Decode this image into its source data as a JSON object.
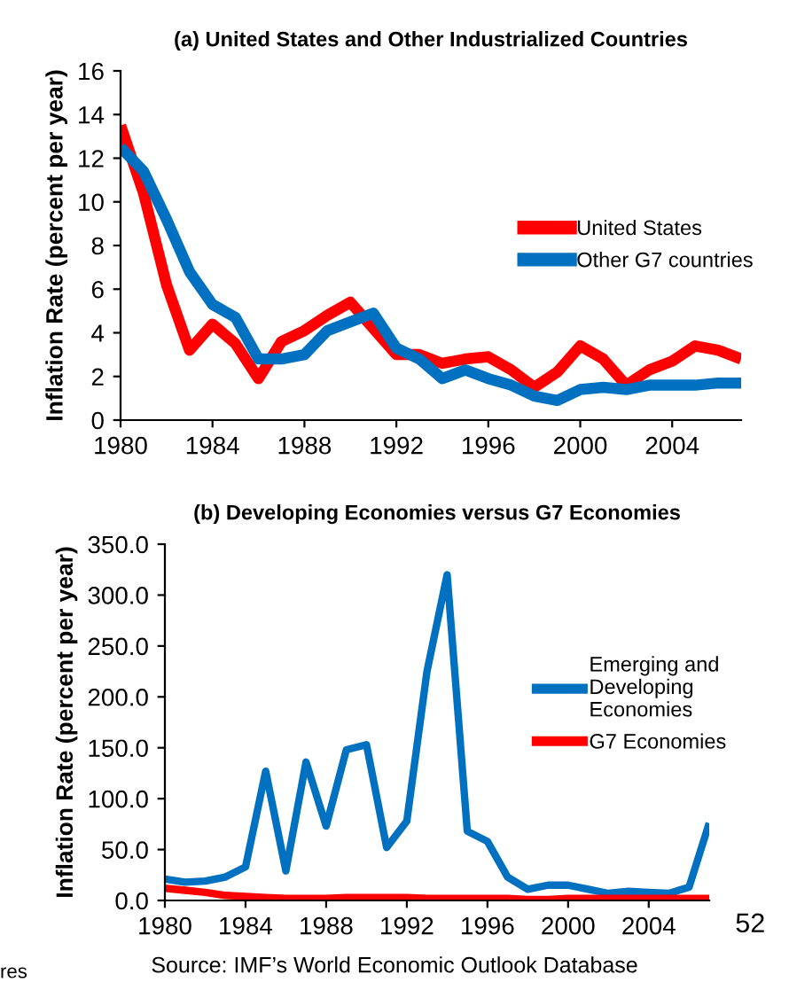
{
  "chart_data": [
    {
      "type": "line",
      "title": "(a) United States and Other Industrialized Countries",
      "ylabel": "Inflation Rate (percent per year)",
      "x": [
        1980,
        1981,
        1982,
        1983,
        1984,
        1985,
        1986,
        1987,
        1988,
        1989,
        1990,
        1991,
        1992,
        1993,
        1994,
        1995,
        1996,
        1997,
        1998,
        1999,
        2000,
        2001,
        2002,
        2003,
        2004,
        2005,
        2006,
        2007
      ],
      "series": [
        {
          "name": "United States",
          "color": "#ff0000",
          "values": [
            13.5,
            10.4,
            6.2,
            3.2,
            4.4,
            3.5,
            1.9,
            3.6,
            4.1,
            4.8,
            5.4,
            4.2,
            3.0,
            3.0,
            2.6,
            2.8,
            2.9,
            2.3,
            1.5,
            2.2,
            3.4,
            2.8,
            1.6,
            2.3,
            2.7,
            3.4,
            3.2,
            2.8
          ]
        },
        {
          "name": "Other G7 countries",
          "color": "#0070c0",
          "values": [
            12.5,
            11.4,
            9.2,
            6.8,
            5.3,
            4.7,
            2.8,
            2.8,
            3.0,
            4.1,
            4.5,
            4.9,
            3.3,
            2.8,
            1.9,
            2.3,
            1.9,
            1.6,
            1.1,
            0.9,
            1.4,
            1.5,
            1.4,
            1.6,
            1.6,
            1.6,
            1.7,
            1.7
          ]
        }
      ],
      "xlim": [
        1980,
        2007
      ],
      "xticks": [
        1980,
        1984,
        1988,
        1992,
        1996,
        2000,
        2004
      ],
      "ylim": [
        0,
        16
      ],
      "yticks": [
        0,
        2,
        4,
        6,
        8,
        10,
        12,
        14,
        16
      ],
      "grid": false,
      "legend": "right",
      "marker": "none",
      "line_style": "solid"
    },
    {
      "type": "line",
      "title": "(b) Developing Economies versus G7 Economies",
      "ylabel": "Inflation Rate (percent per year)",
      "x": [
        1980,
        1981,
        1982,
        1983,
        1984,
        1985,
        1986,
        1987,
        1988,
        1989,
        1990,
        1991,
        1992,
        1993,
        1994,
        1995,
        1996,
        1997,
        1998,
        1999,
        2000,
        2001,
        2002,
        2003,
        2004,
        2005,
        2006,
        2007
      ],
      "series": [
        {
          "name": "Emerging and\nDeveloping\nEconomies",
          "color": "#0070c0",
          "values": [
            21,
            18,
            19,
            23,
            33,
            127,
            29,
            136,
            73,
            148,
            153,
            52,
            78,
            225,
            320,
            68,
            58,
            23,
            11,
            15,
            15,
            11,
            7,
            9,
            8,
            7,
            13,
            76
          ]
        },
        {
          "name": "G7 Economies",
          "color": "#ff0000",
          "values": [
            12,
            10,
            8,
            5,
            4,
            3,
            2,
            2,
            2,
            3,
            3,
            3,
            3,
            2,
            2,
            2,
            2,
            2,
            1,
            1,
            2,
            2,
            2,
            2,
            2,
            2,
            2,
            2
          ]
        }
      ],
      "xlim": [
        1980,
        2007
      ],
      "xticks": [
        1980,
        1984,
        1988,
        1992,
        1996,
        2000,
        2004
      ],
      "ylim": [
        0,
        350
      ],
      "yticks": [
        {
          "value": 0,
          "label": "0.0"
        },
        {
          "value": 50,
          "label": "50.0"
        },
        {
          "value": 100,
          "label": "100.0"
        },
        {
          "value": 150,
          "label": "150.0"
        },
        {
          "value": 200,
          "label": "200.0"
        },
        {
          "value": 250,
          "label": "250.0"
        },
        {
          "value": 300,
          "label": "300.0"
        },
        {
          "value": 350,
          "label": "350.0"
        }
      ],
      "grid": false,
      "legend": "right",
      "marker": "none",
      "line_style": "solid",
      "annotations": [
        "Source: IMF’s World Economic Outlook Database",
        "52",
        "res"
      ]
    }
  ]
}
